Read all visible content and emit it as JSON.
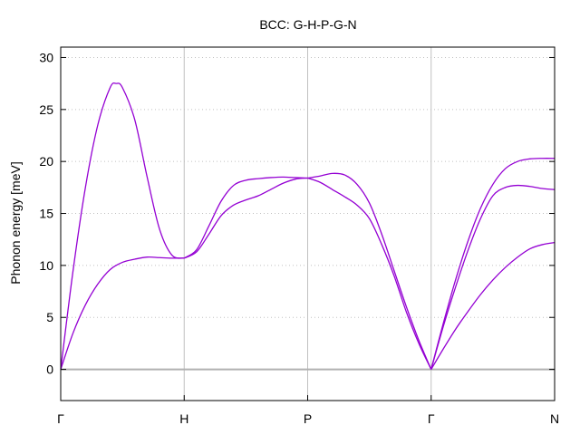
{
  "chart_data": {
    "type": "line",
    "title": "BCC: G-H-P-G-N",
    "xlabel": "",
    "ylabel": "Phonon energy [meV]",
    "ylim": [
      -3,
      31
    ],
    "yticks": [
      0,
      5,
      10,
      15,
      20,
      25,
      30
    ],
    "xlim": [
      0,
      4
    ],
    "xticks": [
      {
        "label": "Γ",
        "x": 0
      },
      {
        "label": "H",
        "x": 1
      },
      {
        "label": "P",
        "x": 2
      },
      {
        "label": "Γ",
        "x": 3
      },
      {
        "label": "N",
        "x": 4
      }
    ],
    "grid": {
      "horizontal": "dotted",
      "vertical": "at high-symmetry points"
    },
    "zero_line": true,
    "colors": {
      "curves": "#9400d3",
      "grid": "#c0c0c0",
      "zero_line": "#b0b0b0",
      "axis": "#000000"
    },
    "series": [
      {
        "x": [
          0,
          0.1,
          0.2,
          0.3,
          0.4,
          0.45,
          0.5,
          0.6,
          0.7,
          0.8,
          0.9,
          1.0
        ],
        "values": [
          0,
          9.5,
          17.5,
          23.5,
          27.1,
          27.5,
          27.1,
          24.0,
          18.5,
          13.5,
          11.0,
          10.7
        ]
      },
      {
        "x": [
          0,
          0.1,
          0.2,
          0.3,
          0.4,
          0.5,
          0.6,
          0.7,
          0.8,
          0.9,
          1.0
        ],
        "values": [
          0,
          3.5,
          6.2,
          8.2,
          9.6,
          10.3,
          10.6,
          10.8,
          10.75,
          10.7,
          10.7
        ]
      },
      {
        "x": [
          1.0,
          1.1,
          1.2,
          1.3,
          1.4,
          1.5,
          1.6,
          1.7,
          1.8,
          1.9,
          2.0
        ],
        "values": [
          10.7,
          11.5,
          13.8,
          16.2,
          17.7,
          18.2,
          18.35,
          18.45,
          18.5,
          18.45,
          18.4
        ]
      },
      {
        "x": [
          1.0,
          1.1,
          1.2,
          1.3,
          1.4,
          1.5,
          1.6,
          1.7,
          1.8,
          1.9,
          2.0
        ],
        "values": [
          10.7,
          11.3,
          13.0,
          14.8,
          15.8,
          16.3,
          16.7,
          17.3,
          17.9,
          18.3,
          18.4
        ]
      },
      {
        "x": [
          2.0,
          2.1,
          2.2,
          2.3,
          2.4,
          2.5,
          2.6,
          2.7,
          2.8,
          2.9,
          3.0
        ],
        "values": [
          18.4,
          18.0,
          17.3,
          16.6,
          15.8,
          14.5,
          12.0,
          9.0,
          5.5,
          2.5,
          0
        ]
      },
      {
        "x": [
          2.0,
          2.1,
          2.2,
          2.3,
          2.4,
          2.5,
          2.6,
          2.7,
          2.8,
          2.9,
          3.0
        ],
        "values": [
          18.4,
          18.6,
          18.85,
          18.7,
          17.8,
          16.0,
          13.0,
          9.5,
          6.0,
          2.8,
          0
        ]
      },
      {
        "x": [
          3.0,
          3.1,
          3.2,
          3.3,
          3.4,
          3.5,
          3.6,
          3.7,
          3.8,
          3.9,
          4.0
        ],
        "values": [
          0,
          4.5,
          8.7,
          12.4,
          15.5,
          17.8,
          19.3,
          20.0,
          20.25,
          20.3,
          20.3
        ]
      },
      {
        "x": [
          3.0,
          3.1,
          3.2,
          3.3,
          3.4,
          3.5,
          3.6,
          3.7,
          3.8,
          3.9,
          4.0
        ],
        "values": [
          0,
          4.2,
          8.0,
          11.5,
          14.5,
          16.7,
          17.5,
          17.7,
          17.6,
          17.4,
          17.3
        ]
      },
      {
        "x": [
          3.0,
          3.1,
          3.2,
          3.3,
          3.4,
          3.5,
          3.6,
          3.7,
          3.8,
          3.9,
          4.0
        ],
        "values": [
          0,
          2.0,
          3.9,
          5.6,
          7.2,
          8.6,
          9.8,
          10.8,
          11.6,
          12.0,
          12.2
        ]
      }
    ]
  }
}
